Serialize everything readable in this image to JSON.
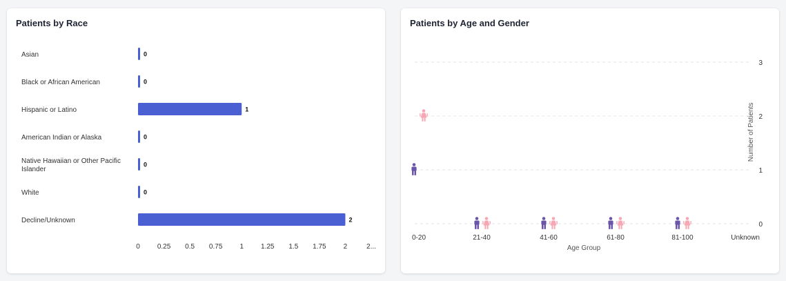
{
  "colors": {
    "bar": "#4a5fd1",
    "male": "#6a55a8",
    "female": "#f6a7b3"
  },
  "icons": {
    "male": "male-person-icon",
    "female": "female-person-icon"
  },
  "race_card": {
    "title": "Patients by Race"
  },
  "age_card": {
    "title": "Patients by Age and Gender"
  },
  "chart_data": [
    {
      "type": "bar",
      "orientation": "horizontal",
      "title": "Patients by Race",
      "categories": [
        "Asian",
        "Black or African American",
        "Hispanic or Latino",
        "American Indian or Alaska",
        [
          "Native Hawaiian or Other Pacific",
          "Islander"
        ],
        "White",
        "Decline/Unknown"
      ],
      "values": [
        0,
        0,
        1,
        0,
        0,
        0,
        2
      ],
      "xlim": [
        0,
        2.25
      ],
      "xticks": [
        "0",
        "0.25",
        "0.5",
        "0.75",
        "1",
        "1.25",
        "1.5",
        "1.75",
        "2",
        "2..."
      ],
      "xtick_values": [
        0,
        0.25,
        0.5,
        0.75,
        1,
        1.25,
        1.5,
        1.75,
        2,
        2.25
      ],
      "grid": false
    },
    {
      "type": "scatter",
      "title": "Patients by Age and Gender",
      "categories": [
        "0-20",
        "21-40",
        "41-60",
        "61-80",
        "81-100",
        "Unknown"
      ],
      "xlabel": "Age Group",
      "ylabel": "Number of Patients",
      "ylim": [
        0,
        3
      ],
      "yticks": [
        "0",
        "1",
        "2",
        "3"
      ],
      "ytick_values": [
        0,
        1,
        2,
        3
      ],
      "y_axis_position": "right",
      "grid": true,
      "series": [
        {
          "gender": "male",
          "values": [
            1,
            0,
            0,
            0,
            0,
            null
          ]
        },
        {
          "gender": "female",
          "values": [
            2,
            0,
            0,
            0,
            0,
            null
          ]
        }
      ]
    }
  ]
}
